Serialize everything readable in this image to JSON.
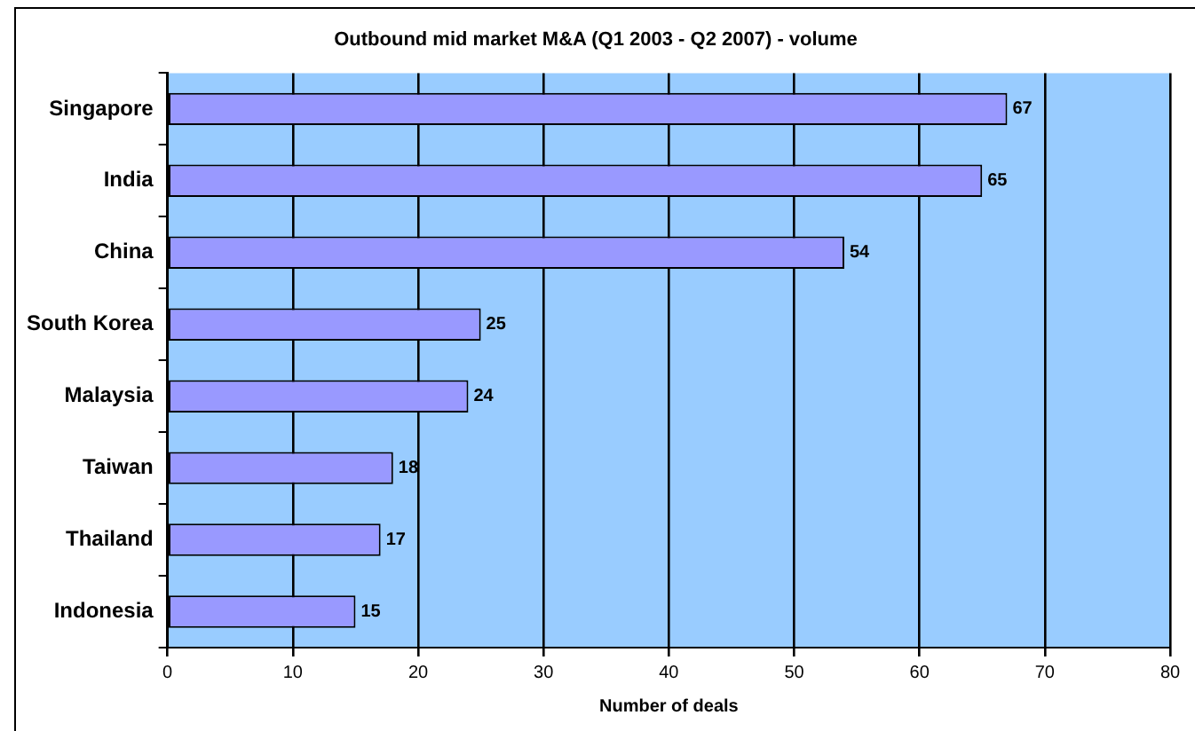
{
  "chart_data": {
    "type": "bar",
    "orientation": "horizontal",
    "title": "Outbound mid market M&A (Q1 2003 - Q2 2007) - volume",
    "xlabel": "Number of deals",
    "categories": [
      "Singapore",
      "India",
      "China",
      "South Korea",
      "Malaysia",
      "Taiwan",
      "Thailand",
      "Indonesia"
    ],
    "values": [
      67,
      65,
      54,
      25,
      24,
      18,
      17,
      15
    ],
    "color": "#9999ff",
    "xlim": [
      0,
      80
    ],
    "xticks": [
      0,
      10,
      20,
      30,
      40,
      50,
      60,
      70,
      80
    ],
    "grid": "x",
    "data_labels": true,
    "legend": false
  }
}
